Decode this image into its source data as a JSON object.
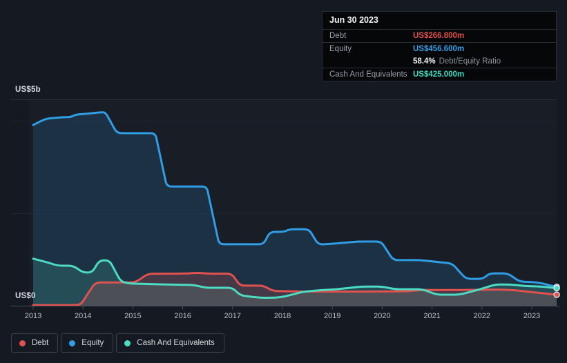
{
  "chart": {
    "y_axis_top": "US$5b",
    "y_axis_zero": "US$0"
  },
  "tooltip": {
    "date": "Jun 30 2023",
    "debt": {
      "label": "Debt",
      "value": "US$266.800m"
    },
    "equity": {
      "label": "Equity",
      "value": "US$456.600m"
    },
    "ratio": {
      "value": "58.4%",
      "label": "Debt/Equity Ratio"
    },
    "cash": {
      "label": "Cash And Equivalents",
      "value": "US$425.000m"
    }
  },
  "legend": {
    "items": [
      {
        "id": "debt",
        "label": "Debt",
        "color": "#e0514f"
      },
      {
        "id": "equity",
        "label": "Equity",
        "color": "#2f9ee5"
      },
      {
        "id": "cash",
        "label": "Cash And Equivalents",
        "color": "#4cdcc3"
      }
    ]
  },
  "chart_data": {
    "type": "area",
    "x_tick_labels": [
      "2013",
      "2014",
      "2015",
      "2016",
      "2017",
      "2018",
      "2019",
      "2020",
      "2021",
      "2022",
      "2023"
    ],
    "x_range": [
      2013,
      2023.5
    ],
    "ylim": [
      0,
      5000
    ],
    "y_unit": "US$m",
    "y_labeled_gridlines": [
      {
        "label": "US$5b",
        "value": 5000
      },
      {
        "label": "US$0",
        "value": 0
      }
    ],
    "grid": "horizontal-only",
    "legend_position": "bottom-left",
    "series": [
      {
        "name": "Equity",
        "color": "#2f9ee5",
        "fill": "rgba(42,125,185,0.20)",
        "points": [
          [
            2013.0,
            4380
          ],
          [
            2013.25,
            4530
          ],
          [
            2013.6,
            4570
          ],
          [
            2013.75,
            4570
          ],
          [
            2013.85,
            4630
          ],
          [
            2014.1,
            4655
          ],
          [
            2014.35,
            4685
          ],
          [
            2014.45,
            4685
          ],
          [
            2014.68,
            4180
          ],
          [
            2015.45,
            4180
          ],
          [
            2015.68,
            2890
          ],
          [
            2016.48,
            2890
          ],
          [
            2016.73,
            1490
          ],
          [
            2017.62,
            1490
          ],
          [
            2017.75,
            1790
          ],
          [
            2018.03,
            1790
          ],
          [
            2018.15,
            1855
          ],
          [
            2018.53,
            1855
          ],
          [
            2018.72,
            1480
          ],
          [
            2019.2,
            1520
          ],
          [
            2019.5,
            1555
          ],
          [
            2019.98,
            1555
          ],
          [
            2020.22,
            1105
          ],
          [
            2020.75,
            1105
          ],
          [
            2021.4,
            1025
          ],
          [
            2021.68,
            650
          ],
          [
            2022.02,
            650
          ],
          [
            2022.15,
            785
          ],
          [
            2022.52,
            785
          ],
          [
            2022.75,
            585
          ],
          [
            2023.1,
            570
          ],
          [
            2023.5,
            456.6
          ]
        ]
      },
      {
        "name": "Cash And Equivalents",
        "color": "#4cdcc3",
        "fill": "rgba(85,225,200,0.16)",
        "points": [
          [
            2013.0,
            1140
          ],
          [
            2013.3,
            1045
          ],
          [
            2013.5,
            970
          ],
          [
            2013.8,
            970
          ],
          [
            2014.0,
            805
          ],
          [
            2014.18,
            805
          ],
          [
            2014.33,
            1100
          ],
          [
            2014.53,
            1100
          ],
          [
            2014.75,
            600
          ],
          [
            2014.9,
            540
          ],
          [
            2015.5,
            520
          ],
          [
            2016.25,
            500
          ],
          [
            2016.45,
            435
          ],
          [
            2017.0,
            435
          ],
          [
            2017.15,
            255
          ],
          [
            2017.4,
            210
          ],
          [
            2017.65,
            190
          ],
          [
            2017.95,
            200
          ],
          [
            2018.2,
            270
          ],
          [
            2018.4,
            335
          ],
          [
            2018.7,
            370
          ],
          [
            2019.1,
            400
          ],
          [
            2019.6,
            465
          ],
          [
            2020.0,
            465
          ],
          [
            2020.25,
            400
          ],
          [
            2020.8,
            400
          ],
          [
            2021.1,
            268
          ],
          [
            2021.55,
            268
          ],
          [
            2021.95,
            395
          ],
          [
            2022.27,
            515
          ],
          [
            2022.55,
            515
          ],
          [
            2022.9,
            475
          ],
          [
            2023.2,
            465
          ],
          [
            2023.5,
            425
          ]
        ]
      },
      {
        "name": "Debt",
        "color": "#e0514f",
        "fill": "rgba(225,85,85,0.22)",
        "points": [
          [
            2013.0,
            15
          ],
          [
            2013.95,
            15
          ],
          [
            2014.1,
            300
          ],
          [
            2014.25,
            565
          ],
          [
            2015.05,
            565
          ],
          [
            2015.3,
            775
          ],
          [
            2016.1,
            780
          ],
          [
            2016.3,
            800
          ],
          [
            2016.5,
            778
          ],
          [
            2016.98,
            778
          ],
          [
            2017.15,
            487
          ],
          [
            2017.62,
            487
          ],
          [
            2017.8,
            358
          ],
          [
            2018.4,
            345
          ],
          [
            2019.5,
            342
          ],
          [
            2020.55,
            350
          ],
          [
            2020.75,
            382
          ],
          [
            2021.6,
            382
          ],
          [
            2022.35,
            392
          ],
          [
            2022.7,
            372
          ],
          [
            2023.0,
            330
          ],
          [
            2023.5,
            266.8
          ]
        ]
      }
    ],
    "highlight_point": {
      "date": "Jun 30 2023",
      "debt_m": 266.8,
      "equity_m": 456.6,
      "debt_equity_ratio_pct": 58.4,
      "cash_m": 425.0
    }
  }
}
